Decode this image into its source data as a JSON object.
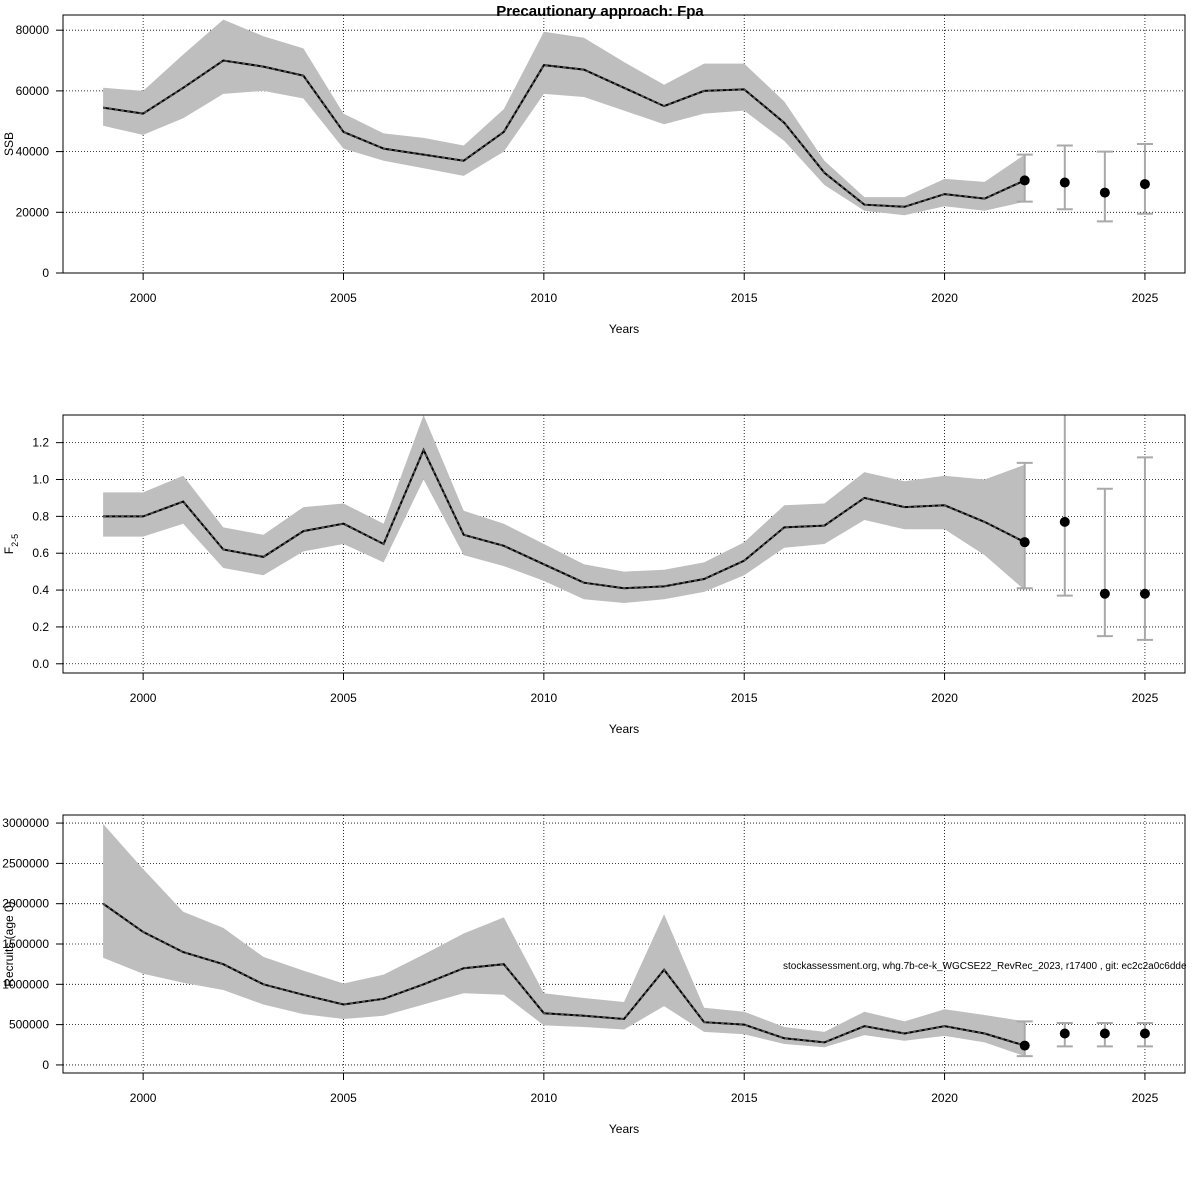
{
  "title": "Precautionary approach: Fpa",
  "footer": "stockassessment.org, whg.7b-ce-k_WGCSE22_RevRec_2023, r17400 , git: ec2c2a0c6dde",
  "colors": {
    "band": "#bebebe",
    "line": "#000000",
    "forecast_bar": "#a9a9a9",
    "grid": "#000000"
  },
  "chart_data": [
    {
      "type": "line",
      "ylabel": "SSB",
      "xlabel": "Years",
      "xlim": [
        1998,
        2026
      ],
      "ylim": [
        0,
        85000
      ],
      "xticks": [
        2000,
        2005,
        2010,
        2015,
        2020,
        2025
      ],
      "yticks": [
        0,
        20000,
        40000,
        60000,
        80000
      ],
      "grid": true,
      "series": [
        {
          "x": [
            1999,
            2000,
            2001,
            2002,
            2003,
            2004,
            2005,
            2006,
            2007,
            2008,
            2009,
            2010,
            2011,
            2012,
            2013,
            2014,
            2015,
            2016,
            2017,
            2018,
            2019,
            2020,
            2021,
            2022
          ],
          "values": [
            54500,
            52500,
            61000,
            70000,
            68000,
            65000,
            46500,
            41000,
            39000,
            37000,
            46500,
            68500,
            67000,
            61000,
            55000,
            60000,
            60500,
            49500,
            33000,
            22500,
            21800,
            26000,
            24500,
            30500
          ],
          "lower": [
            48500,
            45500,
            51000,
            59000,
            60000,
            57500,
            41000,
            37000,
            34500,
            32000,
            40000,
            59000,
            58000,
            53500,
            49000,
            52500,
            53500,
            43500,
            29000,
            20500,
            19000,
            22000,
            20500,
            23500
          ],
          "upper": [
            61000,
            60000,
            72000,
            83500,
            78000,
            74000,
            52500,
            46000,
            44500,
            42000,
            54000,
            79500,
            77500,
            69500,
            62000,
            69000,
            69000,
            56500,
            37000,
            25000,
            25000,
            31000,
            30000,
            39000
          ]
        }
      ],
      "forecast": {
        "x": [
          2022,
          2023,
          2024,
          2025
        ],
        "values": [
          30500,
          29800,
          26500,
          29300
        ],
        "lower": [
          23500,
          21000,
          17000,
          19500
        ],
        "upper": [
          39000,
          42000,
          40000,
          42500
        ]
      }
    },
    {
      "type": "line",
      "ylabel": "F",
      "ylabel_sub": "2-5",
      "xlabel": "Years",
      "xlim": [
        1998,
        2026
      ],
      "ylim": [
        -0.05,
        1.35
      ],
      "xticks": [
        2000,
        2005,
        2010,
        2015,
        2020,
        2025
      ],
      "yticks": [
        "0.0",
        "0.2",
        "0.4",
        "0.6",
        "0.8",
        "1.0",
        "1.2"
      ],
      "grid": true,
      "series": [
        {
          "x": [
            1999,
            2000,
            2001,
            2002,
            2003,
            2004,
            2005,
            2006,
            2007,
            2008,
            2009,
            2010,
            2011,
            2012,
            2013,
            2014,
            2015,
            2016,
            2017,
            2018,
            2019,
            2020,
            2021,
            2022
          ],
          "values": [
            0.8,
            0.8,
            0.88,
            0.62,
            0.58,
            0.72,
            0.76,
            0.65,
            1.16,
            0.7,
            0.64,
            0.54,
            0.44,
            0.41,
            0.42,
            0.46,
            0.56,
            0.74,
            0.75,
            0.9,
            0.85,
            0.86,
            0.77,
            0.66
          ],
          "lower": [
            0.69,
            0.69,
            0.76,
            0.52,
            0.48,
            0.61,
            0.65,
            0.55,
            1.0,
            0.59,
            0.53,
            0.45,
            0.35,
            0.33,
            0.35,
            0.39,
            0.48,
            0.63,
            0.65,
            0.78,
            0.73,
            0.73,
            0.59,
            0.4
          ],
          "upper": [
            0.93,
            0.93,
            1.02,
            0.74,
            0.7,
            0.85,
            0.87,
            0.76,
            1.35,
            0.83,
            0.76,
            0.65,
            0.54,
            0.5,
            0.51,
            0.55,
            0.66,
            0.86,
            0.87,
            1.04,
            0.99,
            1.02,
            1.0,
            1.08
          ]
        }
      ],
      "forecast": {
        "x": [
          2022,
          2023,
          2024,
          2025
        ],
        "values": [
          0.66,
          0.77,
          0.38,
          0.38
        ],
        "lower": [
          0.41,
          0.37,
          0.15,
          0.13
        ],
        "upper": [
          1.09,
          1.4,
          0.95,
          1.12
        ]
      }
    },
    {
      "type": "line",
      "ylabel": "Recruits (age 0)",
      "xlabel": "Years",
      "xlim": [
        1998,
        2026
      ],
      "ylim": [
        -100000,
        3100000
      ],
      "xticks": [
        2000,
        2005,
        2010,
        2015,
        2020,
        2025
      ],
      "yticks": [
        0,
        500000,
        1000000,
        1500000,
        2000000,
        2500000,
        3000000
      ],
      "grid": true,
      "series": [
        {
          "x": [
            1999,
            2000,
            2001,
            2002,
            2003,
            2004,
            2005,
            2006,
            2007,
            2008,
            2009,
            2010,
            2011,
            2012,
            2013,
            2014,
            2015,
            2016,
            2017,
            2018,
            2019,
            2020,
            2021,
            2022
          ],
          "values": [
            2000000,
            1650000,
            1400000,
            1250000,
            1000000,
            870000,
            750000,
            820000,
            1000000,
            1200000,
            1250000,
            640000,
            610000,
            570000,
            1180000,
            530000,
            500000,
            330000,
            280000,
            480000,
            390000,
            480000,
            390000,
            240000
          ],
          "lower": [
            1330000,
            1130000,
            1020000,
            930000,
            750000,
            630000,
            570000,
            610000,
            750000,
            890000,
            870000,
            490000,
            470000,
            440000,
            730000,
            410000,
            380000,
            260000,
            220000,
            370000,
            300000,
            360000,
            280000,
            110000
          ],
          "upper": [
            2990000,
            2430000,
            1900000,
            1700000,
            1340000,
            1170000,
            1010000,
            1120000,
            1370000,
            1630000,
            1830000,
            890000,
            830000,
            780000,
            1870000,
            710000,
            660000,
            470000,
            410000,
            660000,
            540000,
            690000,
            620000,
            540000
          ]
        }
      ],
      "forecast": {
        "x": [
          2022,
          2023,
          2024,
          2025
        ],
        "values": [
          240000,
          390000,
          390000,
          390000
        ],
        "lower": [
          110000,
          230000,
          230000,
          230000
        ],
        "upper": [
          540000,
          520000,
          520000,
          520000
        ]
      }
    }
  ]
}
